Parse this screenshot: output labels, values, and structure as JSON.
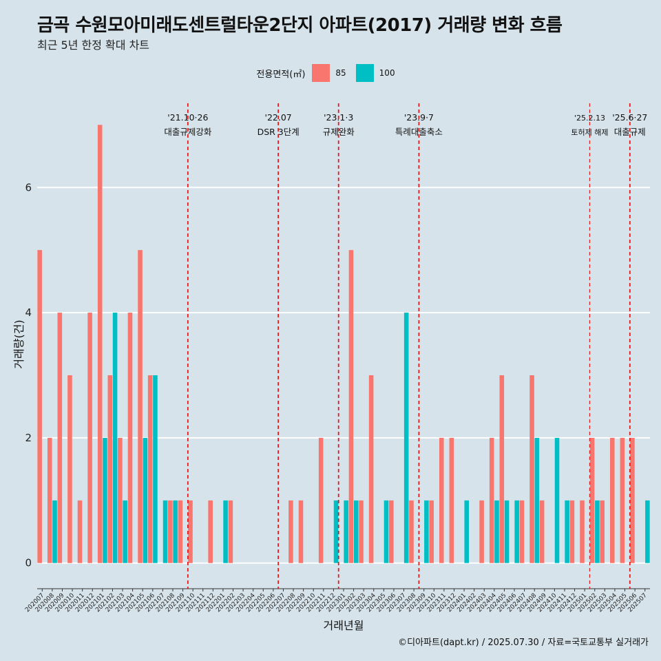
{
  "chart_data": {
    "type": "bar",
    "title": "금곡 수원모아미래도센트럴타운2단지 아파트(2017) 거래량 변화 흐름",
    "subtitle": "최근 5년 한정 확대 차트",
    "xlabel": "거래년월",
    "ylabel": "거래량(건)",
    "ylim": [
      -0.3,
      7.4
    ],
    "yticks": [
      0,
      2,
      4,
      6
    ],
    "legend": {
      "title": "전용면적(㎡)",
      "position": "top"
    },
    "categories": [
      "202007",
      "202008",
      "202009",
      "202010",
      "202011",
      "202012",
      "202101",
      "202102",
      "202103",
      "202104",
      "202105",
      "202106",
      "202107",
      "202108",
      "202109",
      "202110",
      "202111",
      "202112",
      "202201",
      "202202",
      "202203",
      "202204",
      "202205",
      "202206",
      "202207",
      "202208",
      "202209",
      "202210",
      "202211",
      "202212",
      "202301",
      "202302",
      "202303",
      "202304",
      "202305",
      "202306",
      "202307",
      "202308",
      "202309",
      "202310",
      "202311",
      "202312",
      "202401",
      "202402",
      "202403",
      "202404",
      "202405",
      "202406",
      "202407",
      "202408",
      "202409",
      "202410",
      "202411",
      "202412",
      "202501",
      "202502",
      "202503",
      "202504",
      "202505",
      "202506",
      "202507"
    ],
    "series": [
      {
        "name": "85",
        "color": "#f8766d",
        "values": [
          5,
          2,
          4,
          3,
          1,
          4,
          7,
          3,
          2,
          4,
          5,
          3,
          0,
          1,
          1,
          1,
          0,
          1,
          0,
          1,
          0,
          0,
          0,
          0,
          0,
          1,
          1,
          0,
          2,
          0,
          0,
          5,
          1,
          3,
          0,
          1,
          0,
          1,
          0,
          1,
          2,
          2,
          0,
          0,
          1,
          2,
          3,
          0,
          1,
          3,
          1,
          0,
          0,
          1,
          1,
          2,
          1,
          2,
          2,
          2,
          0
        ]
      },
      {
        "name": "100",
        "color": "#00bfc4",
        "values": [
          0,
          1,
          0,
          0,
          0,
          0,
          2,
          4,
          1,
          0,
          2,
          3,
          1,
          1,
          0,
          0,
          0,
          0,
          1,
          0,
          0,
          0,
          0,
          0,
          0,
          0,
          0,
          0,
          0,
          1,
          1,
          1,
          0,
          0,
          1,
          0,
          4,
          0,
          1,
          0,
          0,
          0,
          1,
          0,
          0,
          1,
          1,
          1,
          0,
          2,
          0,
          2,
          1,
          0,
          0,
          1,
          0,
          0,
          0,
          0,
          1
        ]
      }
    ],
    "annotations": [
      {
        "date": "202110",
        "label1": "'21.10·26",
        "label2": "대출규제강화",
        "small": false
      },
      {
        "date": "202207",
        "label1": "'22.07",
        "label2": "DSR 3단계",
        "small": false
      },
      {
        "date": "202301",
        "label1": "'23.1·3",
        "label2": "규제완화",
        "small": false
      },
      {
        "date": "202309",
        "label1": "'23.9·7",
        "label2": "특례대출축소",
        "small": false
      },
      {
        "date": "202502",
        "label1": "'25.2.13",
        "label2": "토허제 해제",
        "small": true
      },
      {
        "date": "202506",
        "label1": "'25.6·27",
        "label2": "대출규제",
        "small": false
      }
    ],
    "grid": true
  },
  "caption": "©디아파트(dapt.kr) / 2025.07.30 / 자료=국토교통부 실거래가"
}
